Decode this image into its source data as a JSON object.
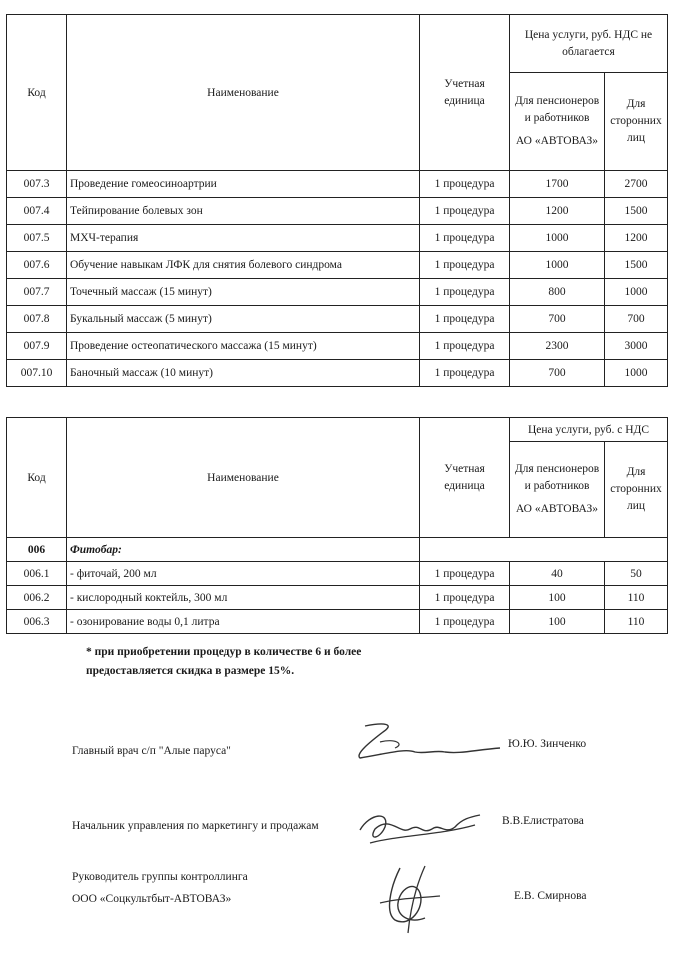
{
  "table1": {
    "headers": {
      "code": "Код",
      "name": "Наименование",
      "unit": "Учетная единица",
      "price_group": "Цена услуги, руб. НДС не облагается",
      "price_employees_1": "Для пенсионеров и работников",
      "price_employees_2": "АО «АВТОВАЗ»",
      "price_others": "Для сторонних лиц"
    },
    "rows": [
      {
        "code": "007.3",
        "name": "Проведение гомеосиноартрии",
        "unit": "1 процедура",
        "employees": "1700",
        "others": "2700"
      },
      {
        "code": "007.4",
        "name": "Тейпирование болевых зон",
        "unit": "1 процедура",
        "employees": "1200",
        "others": "1500"
      },
      {
        "code": "007.5",
        "name": "МХЧ-терапия",
        "unit": "1 процедура",
        "employees": "1000",
        "others": "1200"
      },
      {
        "code": "007.6",
        "name": "Обучение навыкам ЛФК для снятия болевого синдрома",
        "unit": "1 процедура",
        "employees": "1000",
        "others": "1500"
      },
      {
        "code": "007.7",
        "name": "Точечный массаж (15 минут)",
        "unit": "1 процедура",
        "employees": "800",
        "others": "1000"
      },
      {
        "code": "007.8",
        "name": "Букальный массаж (5 минут)",
        "unit": "1 процедура",
        "employees": "700",
        "others": "700"
      },
      {
        "code": "007.9",
        "name": "Проведение остеопатического массажа (15 минут)",
        "unit": "1 процедура",
        "employees": "2300",
        "others": "3000"
      },
      {
        "code": "007.10",
        "name": "Баночный массаж  (10 минут)",
        "unit": "1 процедура",
        "employees": "700",
        "others": "1000"
      }
    ]
  },
  "table2": {
    "headers": {
      "code": "Код",
      "name": "Наименование",
      "unit": "Учетная единица",
      "price_group": "Цена услуги, руб. с НДС",
      "price_employees_1": "Для пенсионеров и работников",
      "price_employees_2": "АО «АВТОВАЗ»",
      "price_others": "Для сторонних лиц"
    },
    "section": {
      "code": "006",
      "name": "Фитобар:"
    },
    "rows": [
      {
        "code": "006.1",
        "name": "- фиточай, 200 мл",
        "unit": "1 процедура",
        "employees": "40",
        "others": "50"
      },
      {
        "code": "006.2",
        "name": "- кислородный коктейль, 300 мл",
        "unit": "1 процедура",
        "employees": "100",
        "others": "110"
      },
      {
        "code": "006.3",
        "name": "- озонирование воды 0,1 литра",
        "unit": "1 процедура",
        "employees": "100",
        "others": "110"
      }
    ]
  },
  "note": "* при приобретении процедур в количестве 6 и более предоставляется скидка в размере 15%.",
  "signatures": [
    {
      "position": "Главный врач  с/п \"Алые паруса\"",
      "name": "Ю.Ю. Зинченко"
    },
    {
      "position": "Начальник управления по маркетингу и продажам",
      "name": "В.В.Елистратова"
    },
    {
      "position": "Руководитель группы контроллинга",
      "position_2": "ООО «Соцкультбыт-АВТОВАЗ»",
      "name": "Е.В. Смирнова"
    }
  ]
}
